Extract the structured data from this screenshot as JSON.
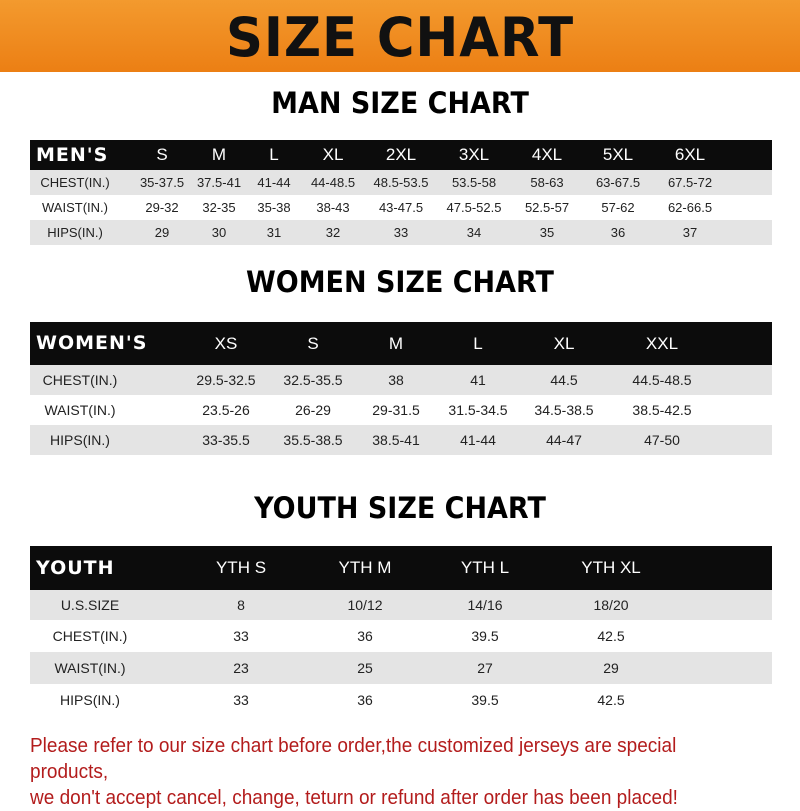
{
  "banner": {
    "title": "SIZE CHART",
    "color": "#ee8a1f"
  },
  "men": {
    "title": "MAN SIZE CHART",
    "header": [
      "MEN'S",
      "S",
      "M",
      "L",
      "XL",
      "2XL",
      "3XL",
      "4XL",
      "5XL",
      "6XL"
    ],
    "rows": [
      [
        "CHEST(IN.)",
        "35-37.5",
        "37.5-41",
        "41-44",
        "44-48.5",
        "48.5-53.5",
        "53.5-58",
        "58-63",
        "63-67.5",
        "67.5-72"
      ],
      [
        "WAIST(IN.)",
        "29-32",
        "32-35",
        "35-38",
        "38-43",
        "43-47.5",
        "47.5-52.5",
        "52.5-57",
        "57-62",
        "62-66.5"
      ],
      [
        "HIPS(IN.)",
        "29",
        "30",
        "31",
        "32",
        "33",
        "34",
        "35",
        "36",
        "37"
      ]
    ]
  },
  "women": {
    "title": "WOMEN SIZE CHART",
    "header": [
      "WOMEN'S",
      "XS",
      "S",
      "M",
      "L",
      "XL",
      "XXL"
    ],
    "rows": [
      [
        "CHEST(IN.)",
        "29.5-32.5",
        "32.5-35.5",
        "38",
        "41",
        "44.5",
        "44.5-48.5"
      ],
      [
        "WAIST(IN.)",
        "23.5-26",
        "26-29",
        "29-31.5",
        "31.5-34.5",
        "34.5-38.5",
        "38.5-42.5"
      ],
      [
        "HIPS(IN.)",
        "33-35.5",
        "35.5-38.5",
        "38.5-41",
        "41-44",
        "44-47",
        "47-50"
      ]
    ]
  },
  "youth": {
    "title": "YOUTH SIZE CHART",
    "header": [
      "YOUTH",
      "YTH S",
      "YTH M",
      "YTH L",
      "YTH XL"
    ],
    "rows": [
      [
        "U.S.SIZE",
        "8",
        "10/12",
        "14/16",
        "18/20"
      ],
      [
        "CHEST(IN.)",
        "33",
        "36",
        "39.5",
        "42.5"
      ],
      [
        "WAIST(IN.)",
        "23",
        "25",
        "27",
        "29"
      ],
      [
        "HIPS(IN.)",
        "33",
        "36",
        "39.5",
        "42.5"
      ]
    ]
  },
  "note": {
    "line1": "Please refer to our size chart before order,the customized jerseys are special products,",
    "line2": "we don't accept cancel, change, teturn or refund after order has been placed!",
    "color": "#b31c1c"
  }
}
